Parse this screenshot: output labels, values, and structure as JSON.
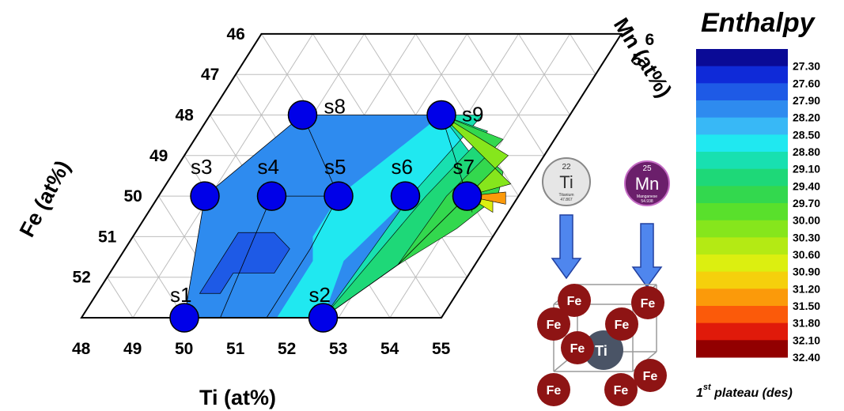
{
  "chart_data": {
    "type": "contour",
    "title": "Enthalpy",
    "xlabel": "Ti (at%)",
    "ylabel": "Fe (at%)",
    "zlabel": "Mn (at%)",
    "x_ticks": [
      "48",
      "49",
      "50",
      "51",
      "52",
      "53",
      "54",
      "55"
    ],
    "fe_ticks": [
      "46",
      "47",
      "48",
      "49",
      "50",
      "51",
      "52"
    ],
    "mn_ticks": [
      "6",
      "5"
    ],
    "grid": true,
    "colorbar": {
      "label": "Enthalpy",
      "values": [
        "27.30",
        "27.60",
        "27.90",
        "28.20",
        "28.50",
        "28.80",
        "29.10",
        "29.40",
        "29.70",
        "30.00",
        "30.30",
        "30.60",
        "30.90",
        "31.20",
        "31.50",
        "31.80",
        "32.10",
        "32.40"
      ],
      "colors": [
        "#0a0a96",
        "#0f2ad8",
        "#1e5ae6",
        "#2e8bef",
        "#38b8f6",
        "#20e8f0",
        "#18e0b0",
        "#1ed878",
        "#33d84e",
        "#59e02c",
        "#86e61c",
        "#b4ea14",
        "#dcef10",
        "#f5d00c",
        "#fb9a0a",
        "#fb5a0a",
        "#e01a0a",
        "#920000"
      ],
      "position": "right"
    },
    "points": [
      {
        "name": "s1",
        "ti": 50.0,
        "mn": 0
      },
      {
        "name": "s2",
        "ti": 52.7,
        "mn": 0
      },
      {
        "name": "s3",
        "ti": 48.9,
        "mn": 3
      },
      {
        "name": "s4",
        "ti": 50.2,
        "mn": 3
      },
      {
        "name": "s5",
        "ti": 51.5,
        "mn": 3
      },
      {
        "name": "s6",
        "ti": 52.8,
        "mn": 3
      },
      {
        "name": "s7",
        "ti": 54.0,
        "mn": 3
      },
      {
        "name": "s8",
        "ti": 49.8,
        "mn": 5
      },
      {
        "name": "s9",
        "ti": 52.5,
        "mn": 5
      }
    ],
    "contour_regions": [
      {
        "level": "27.60",
        "points": [
          [
            50.0,
            0.6
          ],
          [
            50.4,
            0.6
          ],
          [
            50.4,
            1.1
          ],
          [
            51.2,
            1.1
          ],
          [
            51.2,
            1.7
          ],
          [
            50.7,
            2.1
          ],
          [
            50.0,
            2.1
          ]
        ]
      },
      {
        "level": "27.90",
        "points": [
          [
            50.0,
            0
          ],
          [
            52.6,
            0
          ],
          [
            52.6,
            0.4
          ],
          [
            51.9,
            1.6
          ],
          [
            51.9,
            2.3
          ],
          [
            52.0,
            3
          ],
          [
            51.6,
            5
          ],
          [
            52.5,
            5
          ],
          [
            52.5,
            5
          ],
          [
            49.8,
            5
          ],
          [
            48.9,
            3
          ],
          [
            50.0,
            0
          ]
        ]
      },
      {
        "level": "28.20",
        "points": [
          [
            51.5,
            3
          ],
          [
            51.5,
            5
          ],
          [
            49.8,
            5
          ],
          [
            49.0,
            3
          ]
        ]
      }
    ],
    "annotations": [
      "1st plateau (des)"
    ],
    "elements": [
      {
        "symbol": "Ti",
        "name": "Titanium",
        "number": "22",
        "mass": "47.867"
      },
      {
        "symbol": "Mn",
        "name": "Manganese",
        "number": "25",
        "mass": "54.938"
      }
    ],
    "crystal_labels": [
      "Fe",
      "Fe",
      "Fe",
      "Fe",
      "Fe",
      "Fe",
      "Fe",
      "Fe",
      "Ti"
    ]
  },
  "note": {
    "prefix": "1",
    "sup": "st",
    "suffix": " plateau (des)"
  }
}
